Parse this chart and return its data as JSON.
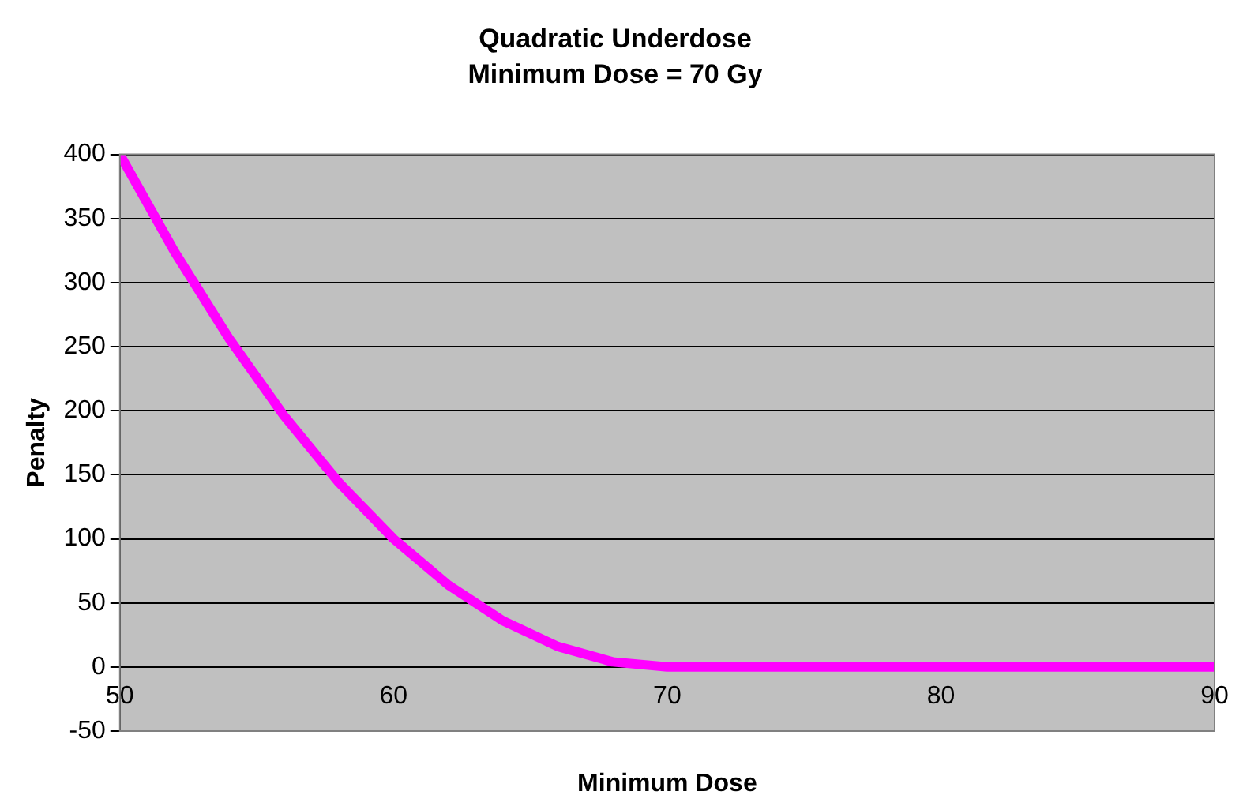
{
  "chart_data": {
    "type": "line",
    "title": "Quadratic Underdose",
    "subtitle": "Minimum Dose = 70 Gy",
    "xlabel": "Minimum Dose",
    "ylabel": "Penalty",
    "x": [
      50,
      52,
      54,
      56,
      58,
      60,
      62,
      64,
      66,
      68,
      70,
      75,
      80,
      85,
      90
    ],
    "series": [
      {
        "color": "#ff00ff",
        "values": [
          400,
          324,
          256,
          196,
          144,
          100,
          64,
          36,
          16,
          4,
          0,
          0,
          0,
          0,
          0
        ]
      }
    ],
    "xlim": [
      50,
      90
    ],
    "xticks": [
      50,
      60,
      70,
      80,
      90
    ],
    "ylim": [
      -50,
      400
    ],
    "yticks": [
      -50,
      0,
      50,
      100,
      150,
      200,
      250,
      300,
      350,
      400
    ],
    "grid": "y",
    "legend": false,
    "marker": "none",
    "line_style": "solid"
  }
}
